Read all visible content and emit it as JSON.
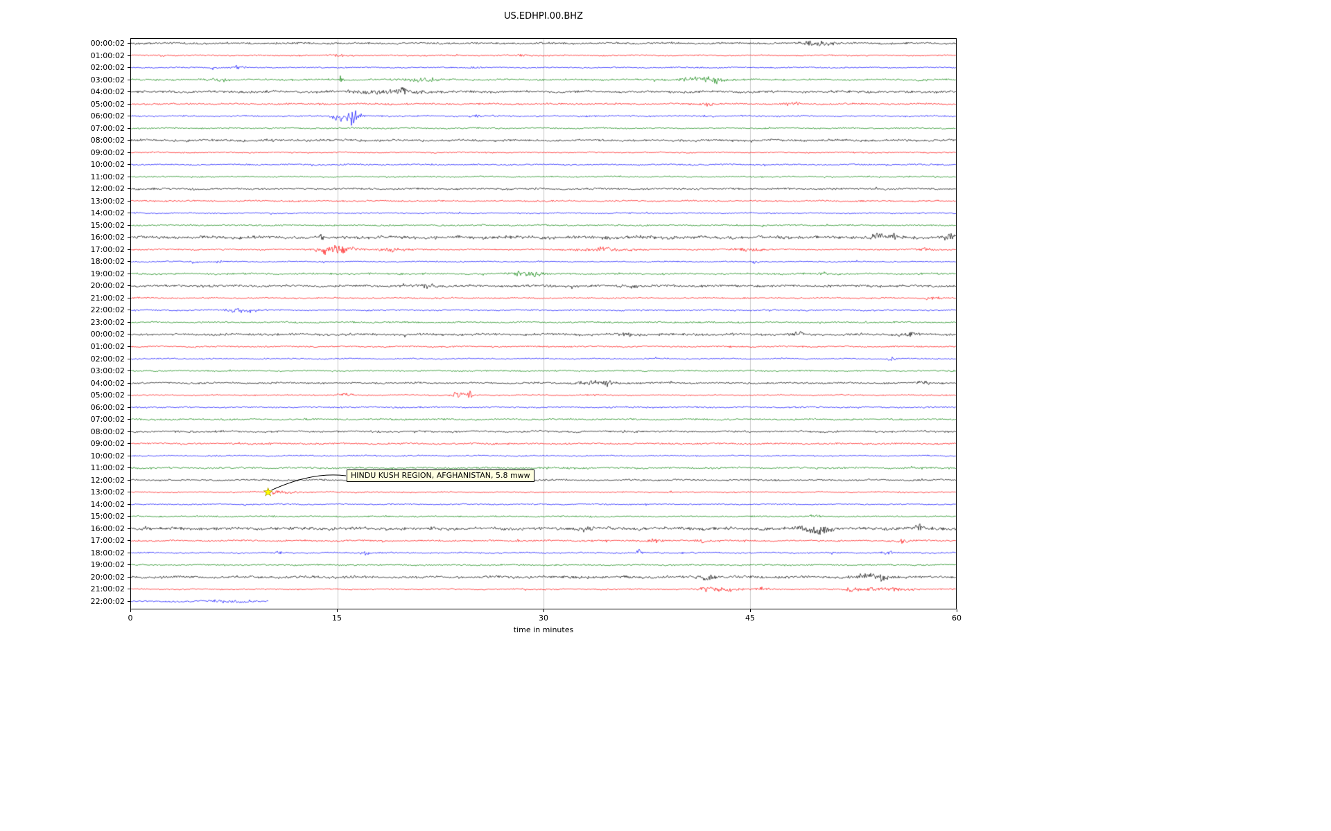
{
  "chart_data": {
    "type": "line",
    "subtype": "seismogram-dayplot",
    "title": "US.EDHPI.00.BHZ",
    "xlabel": "time in minutes",
    "xlim": [
      0,
      60
    ],
    "xticks": [
      0,
      15,
      30,
      45,
      60
    ],
    "xticklabels": [
      "0",
      "15",
      "30",
      "45",
      "60"
    ],
    "grid": "vertical gridlines at 15, 30 and 45 minutes",
    "legend": "none",
    "palette": {
      "black": "#000000",
      "red": "#ff0000",
      "blue": "#0000ff",
      "green": "#008000"
    },
    "trace_color_cycle": [
      "black",
      "red",
      "blue",
      "green"
    ],
    "rows": [
      {
        "label": "00:00:02",
        "color": "black"
      },
      {
        "label": "01:00:02",
        "color": "red"
      },
      {
        "label": "02:00:02",
        "color": "blue"
      },
      {
        "label": "03:00:02",
        "color": "green"
      },
      {
        "label": "04:00:02",
        "color": "black"
      },
      {
        "label": "05:00:02",
        "color": "red"
      },
      {
        "label": "06:00:02",
        "color": "blue"
      },
      {
        "label": "07:00:02",
        "color": "green"
      },
      {
        "label": "08:00:02",
        "color": "black"
      },
      {
        "label": "09:00:02",
        "color": "red"
      },
      {
        "label": "10:00:02",
        "color": "blue"
      },
      {
        "label": "11:00:02",
        "color": "green"
      },
      {
        "label": "12:00:02",
        "color": "black"
      },
      {
        "label": "13:00:02",
        "color": "red"
      },
      {
        "label": "14:00:02",
        "color": "blue"
      },
      {
        "label": "15:00:02",
        "color": "green"
      },
      {
        "label": "16:00:02",
        "color": "black"
      },
      {
        "label": "17:00:02",
        "color": "red"
      },
      {
        "label": "18:00:02",
        "color": "blue"
      },
      {
        "label": "19:00:02",
        "color": "green"
      },
      {
        "label": "20:00:02",
        "color": "black"
      },
      {
        "label": "21:00:02",
        "color": "red"
      },
      {
        "label": "22:00:02",
        "color": "blue"
      },
      {
        "label": "23:00:02",
        "color": "green"
      },
      {
        "label": "00:00:02",
        "color": "black"
      },
      {
        "label": "01:00:02",
        "color": "red"
      },
      {
        "label": "02:00:02",
        "color": "blue"
      },
      {
        "label": "03:00:02",
        "color": "green"
      },
      {
        "label": "04:00:02",
        "color": "black"
      },
      {
        "label": "05:00:02",
        "color": "red"
      },
      {
        "label": "06:00:02",
        "color": "blue"
      },
      {
        "label": "07:00:02",
        "color": "green"
      },
      {
        "label": "08:00:02",
        "color": "black"
      },
      {
        "label": "09:00:02",
        "color": "red"
      },
      {
        "label": "10:00:02",
        "color": "blue"
      },
      {
        "label": "11:00:02",
        "color": "green"
      },
      {
        "label": "12:00:02",
        "color": "black"
      },
      {
        "label": "13:00:02",
        "color": "red"
      },
      {
        "label": "14:00:02",
        "color": "blue"
      },
      {
        "label": "15:00:02",
        "color": "green"
      },
      {
        "label": "16:00:02",
        "color": "black"
      },
      {
        "label": "17:00:02",
        "color": "red"
      },
      {
        "label": "18:00:02",
        "color": "blue"
      },
      {
        "label": "19:00:02",
        "color": "green"
      },
      {
        "label": "20:00:02",
        "color": "black"
      },
      {
        "label": "21:00:02",
        "color": "red"
      },
      {
        "label": "22:00:02",
        "color": "blue",
        "end_min": 10
      }
    ],
    "annotation": {
      "text": "HINDU KUSH REGION, AFGHANISTAN, 5.8 mww",
      "row_index": 37,
      "row_label": "13:00:02",
      "x_minutes": 10,
      "marker": "star",
      "marker_color": "#ffff00"
    },
    "events": [
      [
        0,
        49.2,
        1.5,
        0.4
      ],
      [
        0,
        50.5,
        2.2,
        0.5
      ],
      [
        1,
        2.2,
        2,
        0.12
      ],
      [
        1,
        15.1,
        1.4,
        0.3
      ],
      [
        1,
        23.5,
        1.4,
        0.15
      ],
      [
        1,
        28.5,
        1.2,
        0.3
      ],
      [
        2,
        6.0,
        2.8,
        0.15
      ],
      [
        2,
        7.8,
        2.2,
        0.3
      ],
      [
        2,
        25.0,
        1.4,
        0.2
      ],
      [
        3,
        6.5,
        1.8,
        0.4
      ],
      [
        3,
        15.3,
        5,
        0.12
      ],
      [
        3,
        21.2,
        2.4,
        0.7
      ],
      [
        3,
        41.3,
        2.4,
        0.9
      ],
      [
        3,
        42.6,
        1.8,
        0.5
      ],
      [
        3,
        57.5,
        1.4,
        0.3
      ],
      [
        4,
        18.5,
        1.1,
        2
      ],
      [
        4,
        20.0,
        1.4,
        0.5
      ],
      [
        5,
        42.0,
        1.8,
        0.2
      ],
      [
        5,
        48.3,
        1.8,
        0.2
      ],
      [
        6,
        15.2,
        3.5,
        0.4
      ],
      [
        6,
        16.0,
        5,
        0.5
      ],
      [
        6,
        16.2,
        9,
        0.2
      ],
      [
        6,
        25.0,
        1.4,
        0.2
      ],
      [
        16,
        30,
        0.5,
        30
      ],
      [
        16,
        14.0,
        1.4,
        0.3
      ],
      [
        16,
        54.2,
        2.4,
        0.4
      ],
      [
        16,
        55.4,
        1.8,
        0.3
      ],
      [
        16,
        59.6,
        2.8,
        0.4
      ],
      [
        17,
        14.5,
        5,
        0.7
      ],
      [
        17,
        15.6,
        3.5,
        0.6
      ],
      [
        17,
        19.0,
        1.8,
        1.0
      ],
      [
        17,
        34.5,
        1.8,
        1.5
      ],
      [
        17,
        44.8,
        1.8,
        0.8
      ],
      [
        17,
        58.0,
        1.5,
        0.5
      ],
      [
        18,
        4.6,
        2.4,
        0.2
      ],
      [
        18,
        6.4,
        2.4,
        0.15
      ],
      [
        18,
        45.5,
        2.4,
        0.2
      ],
      [
        19,
        28.4,
        3.2,
        0.35
      ],
      [
        19,
        29.2,
        1.8,
        0.6
      ],
      [
        19,
        50.5,
        1.5,
        0.3
      ],
      [
        20,
        30,
        0.3,
        30
      ],
      [
        20,
        21.5,
        1.8,
        0.6
      ],
      [
        20,
        36.5,
        1.3,
        0.5
      ],
      [
        21,
        0.5,
        1.5,
        0.3
      ],
      [
        21,
        58.3,
        1.8,
        0.4
      ],
      [
        22,
        0.3,
        2.8,
        0.12
      ],
      [
        22,
        7.7,
        2.2,
        0.5
      ],
      [
        22,
        8.9,
        2.2,
        0.4
      ],
      [
        22,
        37.0,
        1.5,
        0.2
      ],
      [
        24,
        30,
        0.25,
        30
      ],
      [
        24,
        36.0,
        1.4,
        0.4
      ],
      [
        24,
        48.5,
        1.6,
        0.4
      ],
      [
        24,
        56.5,
        1.6,
        0.5
      ],
      [
        26,
        55.3,
        2.8,
        0.2
      ],
      [
        28,
        33.8,
        1.4,
        1.2
      ],
      [
        28,
        34.6,
        7,
        0.12
      ],
      [
        28,
        57.6,
        1.5,
        0.3
      ],
      [
        29,
        15.6,
        2.8,
        0.3
      ],
      [
        29,
        23.7,
        4.2,
        0.25
      ],
      [
        29,
        24.6,
        3.8,
        0.3
      ],
      [
        37,
        10.3,
        1.8,
        0.25
      ],
      [
        37,
        11.2,
        1.3,
        1.5
      ],
      [
        39,
        49.7,
        1.5,
        0.3
      ],
      [
        40,
        30,
        0.3,
        30
      ],
      [
        40,
        33.0,
        1.4,
        0.5
      ],
      [
        40,
        49.5,
        3.2,
        0.5
      ],
      [
        40,
        50.4,
        2.4,
        0.4
      ],
      [
        40,
        57.3,
        2.0,
        0.4
      ],
      [
        41,
        38.0,
        1.8,
        0.3
      ],
      [
        41,
        41.5,
        1.8,
        0.3
      ],
      [
        41,
        56.0,
        2.2,
        0.4
      ],
      [
        42,
        10.7,
        1.8,
        0.15
      ],
      [
        42,
        17.0,
        1.8,
        0.2
      ],
      [
        42,
        37.0,
        2.6,
        0.2
      ],
      [
        42,
        55.0,
        1.8,
        0.3
      ],
      [
        44,
        30,
        0.3,
        30
      ],
      [
        44,
        42.0,
        1.8,
        0.4
      ],
      [
        44,
        53.5,
        2.2,
        0.8
      ],
      [
        44,
        54.6,
        1.8,
        0.5
      ],
      [
        45,
        41.8,
        3.0,
        0.4
      ],
      [
        45,
        43.0,
        2.6,
        0.8
      ],
      [
        45,
        46.0,
        1.8,
        0.4
      ],
      [
        45,
        52.5,
        1.8,
        0.5
      ],
      [
        45,
        54.0,
        2.2,
        1.0
      ],
      [
        45,
        56.0,
        1.8,
        0.6
      ],
      [
        46,
        7.0,
        1.2,
        1.5
      ]
    ]
  }
}
